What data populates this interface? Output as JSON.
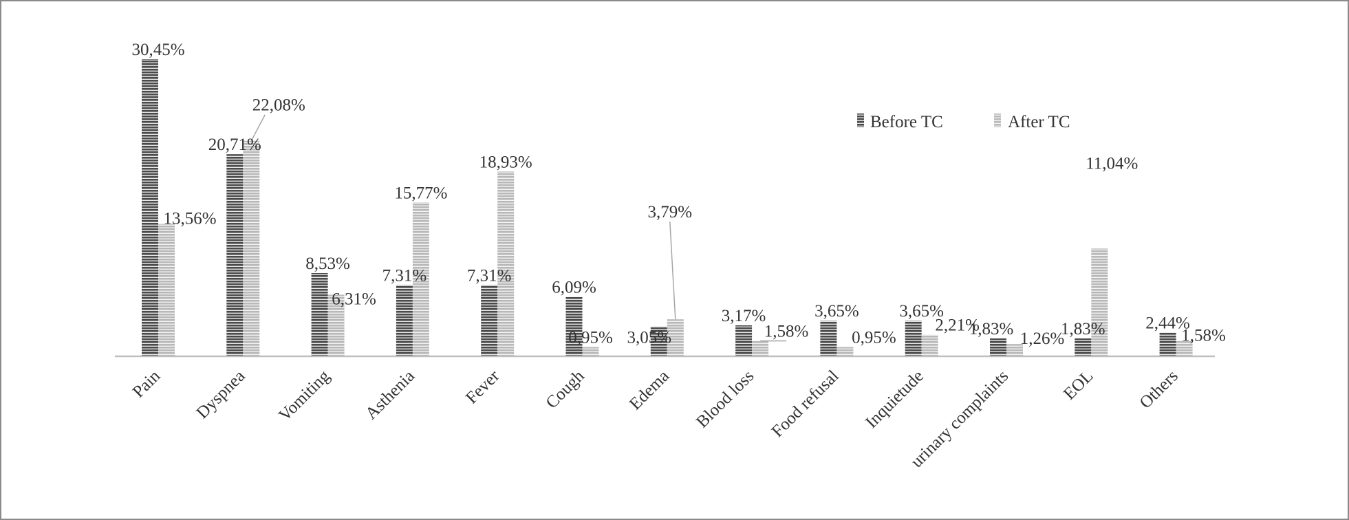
{
  "chart_data": {
    "type": "bar",
    "categories": [
      "Pain",
      "Dyspnea",
      "Vomiting",
      "Asthenia",
      "Fever",
      "Cough",
      "Edema",
      "Blood loss",
      "Food refusal",
      "Inquietude",
      "urinary complaints",
      "EOL",
      "Others"
    ],
    "series": [
      {
        "name": "Before TC",
        "values": [
          30.45,
          20.71,
          8.53,
          7.31,
          7.31,
          6.09,
          3.05,
          3.17,
          3.65,
          3.65,
          1.83,
          1.83,
          2.44
        ],
        "labels": [
          "30,45%",
          "20,71%",
          "8,53%",
          "7,31%",
          "7,31%",
          "6,09%",
          "3,05%",
          "3,17%",
          "3,65%",
          "3,65%",
          "1,83%",
          "1,83%",
          "2,44%"
        ],
        "color": "#595959",
        "pattern": "horizontal-stripes"
      },
      {
        "name": "After TC",
        "values": [
          13.56,
          22.08,
          6.31,
          15.77,
          18.93,
          0.95,
          3.79,
          1.58,
          0.95,
          2.21,
          1.26,
          11.04,
          1.58
        ],
        "labels": [
          "13,56%",
          "22,08%",
          "6,31%",
          "15,77%",
          "18,93%",
          "0,95%",
          "3,79%",
          "1,58%",
          "0,95%",
          "2,21%",
          "1,26%",
          "11,04%",
          "1,58%"
        ],
        "color": "#bfbfbf",
        "pattern": "horizontal-stripes"
      }
    ],
    "title": "",
    "xlabel": "",
    "ylabel": "",
    "ylim": [
      0,
      31
    ],
    "y_axis_visible": false,
    "grid": false,
    "legend_position": "top-right"
  }
}
